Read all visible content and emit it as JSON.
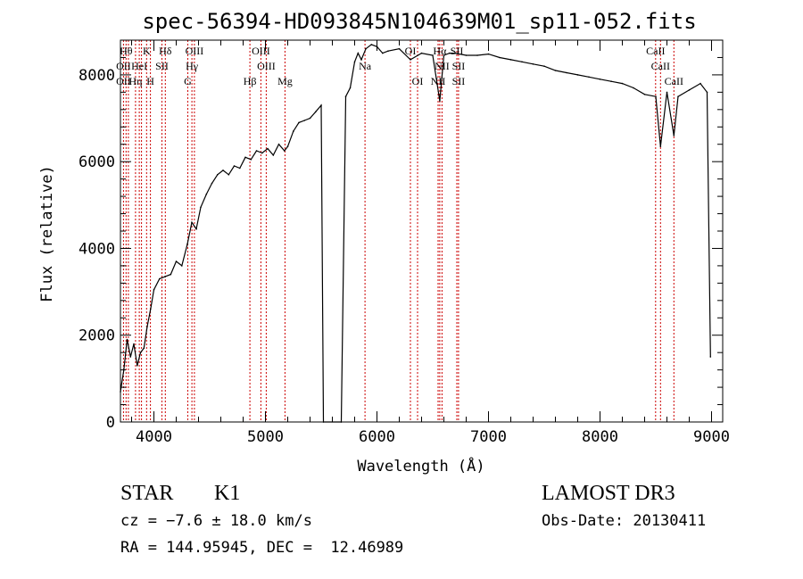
{
  "chart_data": {
    "type": "line",
    "title": "spec-56394-HD093845N104639M01_sp11-052.fits",
    "xlabel": "Wavelength (Å)",
    "ylabel": "Flux (relative)",
    "xlim": [
      3700,
      9100
    ],
    "ylim": [
      0,
      8800
    ],
    "x_ticks": [
      4000,
      5000,
      6000,
      7000,
      8000,
      9000
    ],
    "y_ticks": [
      0,
      2000,
      4000,
      6000,
      8000
    ],
    "grid": false,
    "series": [
      {
        "x": [
          3700,
          3730,
          3760,
          3790,
          3820,
          3850,
          3880,
          3910,
          3940,
          3970,
          4000,
          4050,
          4100,
          4150,
          4200,
          4250,
          4300,
          4340,
          4380,
          4420,
          4470,
          4520,
          4570,
          4620,
          4670,
          4720,
          4770,
          4820,
          4870,
          4920,
          4970,
          5020,
          5070,
          5120,
          5170,
          5200,
          5250,
          5300,
          5350,
          5400,
          5450,
          5500,
          5520,
          5680,
          5720,
          5760,
          5800,
          5830,
          5860,
          5900,
          5950,
          6000,
          6050,
          6100,
          6200,
          6300,
          6400,
          6500,
          6563,
          6600,
          6650,
          6700,
          6800,
          6900,
          7000,
          7100,
          7200,
          7300,
          7400,
          7500,
          7600,
          7700,
          7800,
          7900,
          8000,
          8100,
          8200,
          8300,
          8400,
          8500,
          8542,
          8600,
          8662,
          8700,
          8800,
          8900,
          8960,
          8990
        ],
        "y": [
          700,
          1200,
          1900,
          1500,
          1800,
          1300,
          1600,
          1700,
          2200,
          2600,
          3050,
          3300,
          3350,
          3400,
          3700,
          3600,
          4100,
          4600,
          4450,
          4950,
          5250,
          5500,
          5700,
          5800,
          5700,
          5900,
          5850,
          6100,
          6050,
          6250,
          6200,
          6300,
          6150,
          6400,
          6250,
          6350,
          6700,
          6900,
          6950,
          7000,
          7150,
          7300,
          0,
          0,
          7500,
          7700,
          8300,
          8500,
          8350,
          8600,
          8700,
          8650,
          8500,
          8550,
          8600,
          8350,
          8500,
          8450,
          7400,
          8450,
          8500,
          8500,
          8450,
          8450,
          8480,
          8400,
          8350,
          8300,
          8250,
          8200,
          8100,
          8050,
          8000,
          7950,
          7900,
          7850,
          7800,
          7700,
          7550,
          7500,
          6350,
          7600,
          6600,
          7500,
          7650,
          7800,
          7600,
          1500
        ]
      }
    ],
    "lines": [
      {
        "x": 3727,
        "labels": [
          "OII"
        ]
      },
      {
        "x": 3750,
        "labels": [
          "Hθ"
        ]
      },
      {
        "x": 3771,
        "labels": [
          "Hη"
        ]
      },
      {
        "x": 3835,
        "labels": [
          "Hη"
        ]
      },
      {
        "x": 3869,
        "labels": [
          "HeI"
        ]
      },
      {
        "x": 3889,
        "labels": [
          "SII"
        ]
      },
      {
        "x": 3934,
        "labels": [
          "K"
        ]
      },
      {
        "x": 3969,
        "labels": [
          "H"
        ]
      },
      {
        "x": 4072,
        "labels": [
          "SII"
        ]
      },
      {
        "x": 4102,
        "labels": [
          "Hδ"
        ]
      },
      {
        "x": 4304,
        "labels": [
          "G"
        ]
      },
      {
        "x": 4341,
        "labels": [
          "Hγ"
        ]
      },
      {
        "x": 4363,
        "labels": [
          "OIII"
        ]
      },
      {
        "x": 4861,
        "labels": [
          "Hβ"
        ]
      },
      {
        "x": 4959,
        "labels": [
          "OIII"
        ]
      },
      {
        "x": 5007,
        "labels": [
          "OIII"
        ]
      },
      {
        "x": 5175,
        "labels": [
          "Mg"
        ]
      },
      {
        "x": 5893,
        "labels": [
          "Na"
        ]
      },
      {
        "x": 6300,
        "labels": [
          "OI"
        ]
      },
      {
        "x": 6364,
        "labels": [
          "OI"
        ]
      },
      {
        "x": 6548,
        "labels": [
          "NII"
        ]
      },
      {
        "x": 6563,
        "labels": [
          "Hα"
        ]
      },
      {
        "x": 6583,
        "labels": [
          "NII"
        ]
      },
      {
        "x": 6716,
        "labels": [
          "SII"
        ]
      },
      {
        "x": 6731,
        "labels": [
          "SII"
        ]
      },
      {
        "x": 8498,
        "labels": [
          "CaII"
        ]
      },
      {
        "x": 8542,
        "labels": [
          "CaII"
        ]
      },
      {
        "x": 8662,
        "labels": [
          "CaII"
        ]
      }
    ],
    "line_labels": [
      {
        "text": "Hθ",
        "x": 3750,
        "row": 1
      },
      {
        "text": "K",
        "x": 3934,
        "row": 1
      },
      {
        "text": "Hδ",
        "x": 4102,
        "row": 1
      },
      {
        "text": "OIII",
        "x": 4363,
        "row": 1
      },
      {
        "text": "OIII",
        "x": 4959,
        "row": 1
      },
      {
        "text": "OI",
        "x": 6300,
        "row": 1
      },
      {
        "text": "Hα",
        "x": 6563,
        "row": 1
      },
      {
        "text": "SII",
        "x": 6716,
        "row": 1
      },
      {
        "text": "CaII",
        "x": 8498,
        "row": 1
      },
      {
        "text": "OII",
        "x": 3727,
        "row": 2
      },
      {
        "text": "HeI",
        "x": 3869,
        "row": 2
      },
      {
        "text": "SII",
        "x": 4072,
        "row": 2
      },
      {
        "text": "Hγ",
        "x": 4341,
        "row": 2
      },
      {
        "text": "OIII",
        "x": 5007,
        "row": 2
      },
      {
        "text": "Na",
        "x": 5893,
        "row": 2
      },
      {
        "text": "NII",
        "x": 6583,
        "row": 2
      },
      {
        "text": "SII",
        "x": 6731,
        "row": 2
      },
      {
        "text": "CaII",
        "x": 8542,
        "row": 2
      },
      {
        "text": "OII",
        "x": 3727,
        "row": 3
      },
      {
        "text": "Hη",
        "x": 3835,
        "row": 3
      },
      {
        "text": "H",
        "x": 3969,
        "row": 3
      },
      {
        "text": "G",
        "x": 4304,
        "row": 3
      },
      {
        "text": "Hβ",
        "x": 4861,
        "row": 3
      },
      {
        "text": "Mg",
        "x": 5175,
        "row": 3
      },
      {
        "text": "OI",
        "x": 6364,
        "row": 3
      },
      {
        "text": "NII",
        "x": 6548,
        "row": 3
      },
      {
        "text": "SII",
        "x": 6731,
        "row": 3
      },
      {
        "text": "CaII",
        "x": 8662,
        "row": 3
      }
    ]
  },
  "info": {
    "class": "STAR",
    "subclass": "K1",
    "survey": "LAMOST DR3",
    "cz": "cz = −7.6 ± 18.0 km/s",
    "obs_date": "Obs-Date: 20130411",
    "coords": "RA = 144.95945, DEC =  12.46989"
  },
  "colors": {
    "spectrum": "#000000",
    "line_markers": "#cc0000",
    "axes": "#000000"
  }
}
